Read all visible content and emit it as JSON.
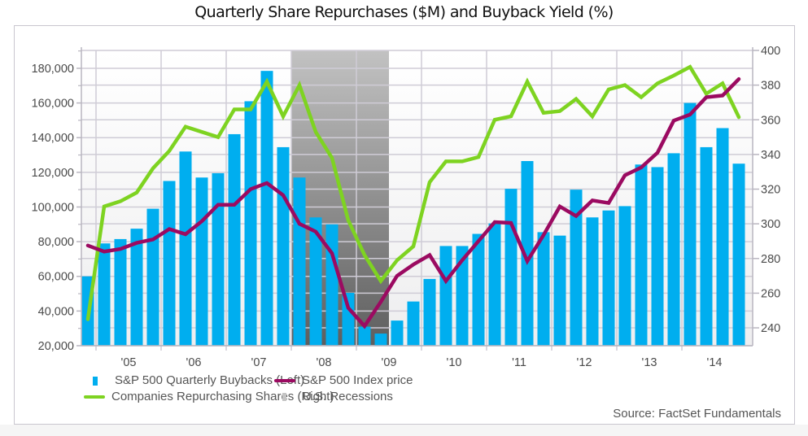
{
  "page": {
    "title": "Quarterly Share Repurchases ($M) and Buyback Yield (%)",
    "source": "Source: FactSet Fundamentals"
  },
  "colors": {
    "buybacks": "#00aeef",
    "companies": "#7ed321",
    "index": "#9b0a61",
    "recession": "#9a9a9a",
    "grid": "#cfccd6"
  },
  "legend": {
    "items": [
      {
        "label": "S&P 500 Quarterly Buybacks (Left)",
        "kind": "bar"
      },
      {
        "label": "S&P 500 Index price",
        "kind": "line"
      },
      {
        "label": "Companies Repurchasing Shares (Right)",
        "kind": "line"
      },
      {
        "label": "U.S. Recessions",
        "kind": "band"
      }
    ]
  },
  "chart_data": {
    "type": "bar",
    "title": "Quarterly Share Repurchases ($M) and Buyback Yield (%)",
    "xlabel": "",
    "ylabel": "",
    "grid": true,
    "legend_position": "bottom-left",
    "x": [
      "Q4'04",
      "Q1'05",
      "Q2'05",
      "Q3'05",
      "Q4'05",
      "Q1'06",
      "Q2'06",
      "Q3'06",
      "Q4'06",
      "Q1'07",
      "Q2'07",
      "Q3'07",
      "Q4'07",
      "Q1'08",
      "Q2'08",
      "Q3'08",
      "Q4'08",
      "Q1'09",
      "Q2'09",
      "Q3'09",
      "Q4'09",
      "Q1'10",
      "Q2'10",
      "Q3'10",
      "Q4'10",
      "Q1'11",
      "Q2'11",
      "Q3'11",
      "Q4'11",
      "Q1'12",
      "Q2'12",
      "Q3'12",
      "Q4'12",
      "Q1'13",
      "Q2'13",
      "Q3'13",
      "Q4'13",
      "Q1'14",
      "Q2'14",
      "Q3'14",
      "Q4'14"
    ],
    "x_tick_labels": [
      "'05",
      "'06",
      "'07",
      "'08",
      "'09",
      "'10",
      "'11",
      "'12",
      "'13",
      "'14"
    ],
    "y_left": {
      "range": [
        20000,
        190300
      ],
      "ticks": [
        20000,
        40000,
        60000,
        80000,
        100000,
        120000,
        140000,
        160000,
        180000
      ],
      "tick_labels": [
        "20,000",
        "40,000",
        "60,000",
        "80,000",
        "100,000",
        "120,000",
        "140,000",
        "160,000",
        "180,000"
      ]
    },
    "y_right": {
      "range": [
        229.7,
        400
      ],
      "ticks": [
        240,
        260,
        280,
        300,
        320,
        340,
        360,
        380,
        400
      ],
      "tick_labels": [
        "240",
        "260",
        "280",
        "300",
        "320",
        "340",
        "360",
        "380",
        "400"
      ]
    },
    "recessions": [
      {
        "start": "Q1'08",
        "end": "Q2'09"
      }
    ],
    "series": [
      {
        "name": "S&P 500 Quarterly Buybacks (Left)",
        "type": "bar",
        "axis": "left",
        "values": [
          60000,
          79000,
          81500,
          87500,
          99000,
          115000,
          132000,
          117000,
          119500,
          142000,
          161000,
          178500,
          134500,
          117000,
          94000,
          90000,
          50500,
          31000,
          27000,
          34500,
          45500,
          58500,
          77500,
          77500,
          84500,
          90500,
          110500,
          126500,
          85500,
          83500,
          110000,
          94000,
          98000,
          100500,
          124500,
          123000,
          131000,
          160000,
          134500,
          145500,
          125000
        ]
      },
      {
        "name": "Companies Repurchasing Shares (Right)",
        "type": "line",
        "axis": "right",
        "values": [
          245,
          310,
          313,
          318,
          332,
          342,
          356,
          353,
          350,
          366,
          366,
          382,
          362,
          380,
          353,
          338,
          302,
          282,
          267,
          279,
          287,
          324,
          336,
          336,
          338.5,
          360,
          362,
          382,
          364,
          365,
          372,
          362,
          377.5,
          380,
          373,
          381,
          385.5,
          390.5,
          375,
          381,
          361.5
        ]
      },
      {
        "name": "S&P 500 Index price",
        "type": "line",
        "axis": "right",
        "values": [
          287.5,
          284,
          285.5,
          289,
          291,
          297,
          294,
          301.5,
          311,
          311,
          320,
          323.5,
          316.5,
          300,
          295.5,
          283,
          251.5,
          241,
          255,
          270,
          276.5,
          282,
          267,
          279,
          290,
          301,
          300.5,
          278.5,
          293.5,
          310,
          304.5,
          313.5,
          312,
          328,
          332.5,
          341,
          359.5,
          363,
          373,
          374,
          383.5
        ]
      }
    ]
  }
}
